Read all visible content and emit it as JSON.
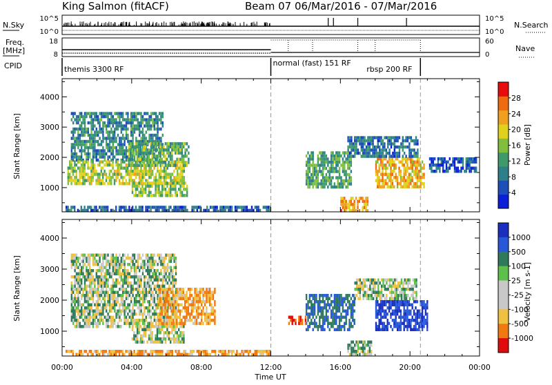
{
  "header": {
    "station": "King Salmon (fitACF)",
    "beam_range": "Beam 07  06/Mar/2016 - 07/Mar/2016"
  },
  "nsky_panel": {
    "label_left": "N.Sky",
    "label_right": "N.Search",
    "left_ticks": [
      "10^5",
      "10^0"
    ],
    "right_ticks": [
      "10^5",
      "10^0"
    ]
  },
  "freq_panel": {
    "label_top": "Freq.",
    "label_unit": "[MHz]",
    "label_right": "Nave",
    "left_ticks": [
      "18",
      "8"
    ],
    "right_ticks": [
      "60",
      "0"
    ]
  },
  "cpid_panel": {
    "label": "CPID",
    "modes": [
      {
        "name": "themis 3300 RF",
        "start_hour": 0
      },
      {
        "name": "normal (fast) 151 RF",
        "start_hour": 12
      },
      {
        "name": "rbsp 200 RF",
        "start_hour": 20.6
      }
    ]
  },
  "time_axis": {
    "label": "Time UT",
    "ticks": [
      "00:00",
      "04:00",
      "08:00",
      "12:00",
      "16:00",
      "20:00",
      "00:00"
    ],
    "start_hour": 0,
    "end_hour": 24,
    "dashed_markers_hours": [
      12,
      20.6
    ]
  },
  "chart_data": [
    {
      "type": "heatmap",
      "name": "power",
      "ylabel": "Slant Range [km]",
      "ylim": [
        200,
        4600
      ],
      "yticks": [
        1000,
        2000,
        3000,
        4000
      ],
      "colorbar": {
        "label": "Power [dB]",
        "range": [
          0,
          32
        ],
        "ticks": [
          "28",
          "24",
          "20",
          "16",
          "12",
          "8",
          "4"
        ]
      },
      "regions": [
        {
          "t0": 0.5,
          "t1": 5.8,
          "r0": 1900,
          "r1": 3500,
          "level": 10
        },
        {
          "t0": 0.3,
          "t1": 7.0,
          "r0": 1100,
          "r1": 1900,
          "level": 17
        },
        {
          "t0": 3.8,
          "t1": 7.3,
          "r0": 1700,
          "r1": 2500,
          "level": 14
        },
        {
          "t0": 4.0,
          "t1": 7.2,
          "r0": 700,
          "r1": 1200,
          "level": 16
        },
        {
          "t0": 0.2,
          "t1": 12.0,
          "r0": 220,
          "r1": 400,
          "level": 7
        },
        {
          "t0": 14.0,
          "t1": 16.6,
          "r0": 1000,
          "r1": 2200,
          "level": 13
        },
        {
          "t0": 18.0,
          "t1": 20.8,
          "r0": 1000,
          "r1": 2000,
          "level": 22
        },
        {
          "t0": 16.0,
          "t1": 17.6,
          "r0": 250,
          "r1": 700,
          "level": 24
        },
        {
          "t0": 16.4,
          "t1": 20.4,
          "r0": 2000,
          "r1": 2700,
          "level": 8
        },
        {
          "t0": 21.0,
          "t1": 23.8,
          "r0": 1500,
          "r1": 2000,
          "level": 6
        }
      ]
    },
    {
      "type": "heatmap",
      "name": "velocity",
      "ylabel": "Slant Range [km]",
      "ylim": [
        200,
        4600
      ],
      "yticks": [
        1000,
        2000,
        3000,
        4000
      ],
      "colorbar": {
        "label": "Velocity [m s-1]",
        "ticks": [
          "1000",
          "500",
          "100",
          "25",
          "-25",
          "-100",
          "-500",
          "-1000"
        ]
      },
      "regions": [
        {
          "t0": 0.5,
          "t1": 6.5,
          "r0": 1100,
          "r1": 3500,
          "level": 25
        },
        {
          "t0": 4.0,
          "t1": 7.0,
          "r0": 600,
          "r1": 1200,
          "level": 0
        },
        {
          "t0": 5.5,
          "t1": 8.8,
          "r0": 1200,
          "r1": 2400,
          "level": -100
        },
        {
          "t0": 0.2,
          "t1": 12.0,
          "r0": 220,
          "r1": 400,
          "level": -100
        },
        {
          "t0": 14.0,
          "t1": 16.8,
          "r0": 1000,
          "r1": 2200,
          "level": 300
        },
        {
          "t0": 18.0,
          "t1": 21.0,
          "r0": 1000,
          "r1": 2000,
          "level": 700
        },
        {
          "t0": 16.4,
          "t1": 17.8,
          "r0": 250,
          "r1": 700,
          "level": 50
        },
        {
          "t0": 13.0,
          "t1": 14.0,
          "r0": 1200,
          "r1": 1500,
          "level": -500
        },
        {
          "t0": 16.8,
          "t1": 20.4,
          "r0": 2000,
          "r1": 2700,
          "level": 25
        }
      ]
    }
  ]
}
